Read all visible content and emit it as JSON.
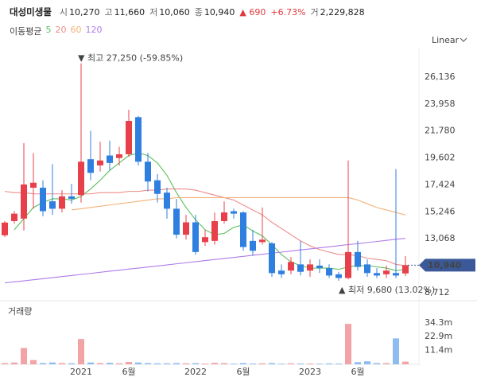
{
  "chart_data": {
    "type": "candlestick",
    "title": "대성미생물",
    "header": [
      {
        "label": "시",
        "value": "10,270"
      },
      {
        "label": "고",
        "value": "11,660"
      },
      {
        "label": "저",
        "value": "10,060"
      },
      {
        "label": "종",
        "value": "10,940"
      },
      {
        "value": "▲ 690",
        "color": "#e0393e"
      },
      {
        "value": "+6.73%",
        "color": "#e0393e"
      },
      {
        "label": "거",
        "value": "2,229,828"
      }
    ],
    "ma_label": "이동평균",
    "scale_label": "Linear",
    "up_color": "#e8404a",
    "down_color": "#2f7fe0",
    "categories": [
      null,
      null,
      null,
      null,
      null,
      null,
      null,
      null,
      "2021",
      null,
      null,
      null,
      null,
      "6월",
      null,
      null,
      null,
      null,
      null,
      null,
      "2022",
      null,
      null,
      null,
      null,
      "6월",
      null,
      null,
      null,
      null,
      null,
      null,
      "2023",
      null,
      null,
      null,
      null,
      "6월",
      null,
      null,
      null,
      null,
      null
    ],
    "open": [
      13350,
      14500,
      14700,
      17200,
      17200,
      16100,
      15500,
      16500,
      16600,
      19500,
      19000,
      19800,
      19600,
      19900,
      22900,
      19300,
      17800,
      16800,
      15500,
      13400,
      14400,
      12800,
      12900,
      14500,
      15300,
      15200,
      12900,
      12800,
      12700,
      10500,
      10500,
      11000,
      10500,
      10900,
      10700,
      10200,
      9900,
      12000,
      11000,
      10300,
      10200,
      10300,
      10270
    ],
    "high": [
      14500,
      15300,
      20800,
      20000,
      17800,
      19100,
      17000,
      17500,
      27250,
      21800,
      20900,
      21000,
      20500,
      23500,
      23000,
      20000,
      18300,
      17200,
      16300,
      15000,
      15000,
      13800,
      15200,
      16100,
      15500,
      15300,
      13800,
      15600,
      12800,
      11000,
      11600,
      12900,
      11400,
      11400,
      11000,
      10400,
      19400,
      12900,
      11400,
      10700,
      10900,
      18700,
      11660
    ],
    "low": [
      13200,
      14300,
      13740,
      15500,
      14900,
      15000,
      15200,
      15900,
      16000,
      17800,
      18500,
      18600,
      19000,
      19700,
      19000,
      16900,
      16000,
      14700,
      13100,
      13000,
      11800,
      12500,
      12600,
      14300,
      14700,
      12100,
      11700,
      12600,
      10000,
      9900,
      10200,
      10100,
      10000,
      10300,
      9900,
      9680,
      9800,
      10500,
      10000,
      9900,
      9900,
      9900,
      10060
    ],
    "close": [
      14380,
      15100,
      17460,
      17600,
      15300,
      15500,
      16500,
      16300,
      19300,
      18400,
      19400,
      19200,
      19900,
      22600,
      19300,
      17700,
      16700,
      15500,
      13400,
      14400,
      12000,
      13200,
      14500,
      15200,
      15100,
      12400,
      12100,
      13000,
      10300,
      10200,
      11200,
      10400,
      11000,
      10700,
      10100,
      9900,
      12000,
      10800,
      10300,
      10100,
      10500,
      10100,
      10940
    ],
    "ylim": [
      8300,
      28500
    ],
    "yticks": [
      {
        "value": 26136,
        "label": "26,136"
      },
      {
        "value": 23958,
        "label": "23,958"
      },
      {
        "value": 21780,
        "label": "21,780"
      },
      {
        "value": 19602,
        "label": "19,602"
      },
      {
        "value": 17424,
        "label": "17,424"
      },
      {
        "value": 15246,
        "label": "15,246"
      },
      {
        "value": 13068,
        "label": "13,068"
      },
      {
        "value": 8712,
        "label": "8,712"
      }
    ],
    "series": [
      {
        "name": "5",
        "color": "#5cbf5c",
        "values": [
          null,
          13800,
          14700,
          15600,
          16000,
          16300,
          16300,
          16200,
          16500,
          17100,
          17800,
          18600,
          19200,
          19800,
          20000,
          19800,
          19200,
          18200,
          16800,
          15600,
          14600,
          13800,
          13400,
          13500,
          14000,
          14200,
          13700,
          13300,
          12600,
          11800,
          11200,
          10900,
          10700,
          10700,
          10700,
          10600,
          10800,
          10900,
          10900,
          10800,
          10700,
          10500,
          10600
        ]
      },
      {
        "name": "20",
        "color": "#f08a8a",
        "values": [
          16900,
          16800,
          16800,
          16700,
          16700,
          16700,
          16700,
          16700,
          16700,
          16700,
          16800,
          16800,
          16800,
          16900,
          16900,
          17000,
          17000,
          17100,
          17100,
          17100,
          17000,
          16800,
          16600,
          16400,
          16200,
          15800,
          15400,
          15000,
          14400,
          13900,
          13400,
          12900,
          12500,
          12200,
          12000,
          11800,
          11800,
          11700,
          11500,
          11400,
          11300,
          11000,
          10900
        ]
      },
      {
        "name": "60",
        "color": "#f2b27a",
        "values": [
          null,
          null,
          null,
          null,
          null,
          null,
          null,
          15400,
          15500,
          15600,
          15700,
          15800,
          15900,
          16000,
          16100,
          16200,
          16300,
          16300,
          16400,
          16400,
          16400,
          16400,
          16400,
          16400,
          16400,
          16400,
          16400,
          16400,
          16400,
          16400,
          16400,
          16400,
          16400,
          16400,
          16400,
          16400,
          16400,
          16200,
          15900,
          15600,
          15400,
          15200,
          15000
        ]
      },
      {
        "name": "120",
        "color": "#b07be8",
        "values": [
          9500,
          9590,
          9670,
          9760,
          9840,
          9930,
          10020,
          10100,
          10190,
          10270,
          10360,
          10450,
          10530,
          10620,
          10700,
          10790,
          10880,
          10960,
          11050,
          11130,
          11220,
          11310,
          11390,
          11480,
          11560,
          11650,
          11740,
          11820,
          11910,
          11990,
          12080,
          12170,
          12250,
          12340,
          12420,
          12510,
          12600,
          12680,
          12770,
          12850,
          12940,
          13030,
          13100
        ]
      }
    ],
    "annotations": [
      {
        "text": "▼ 최고 27,250 (-59.85%)"
      },
      {
        "text": "▲ 최저 9,680 (13.02%)"
      }
    ],
    "volume": {
      "title": "거래량",
      "values": [
        1000000,
        1500000,
        13500000,
        3500000,
        1000000,
        1500000,
        1000000,
        800000,
        21000000,
        1500000,
        1000000,
        1200000,
        800000,
        2000000,
        1500000,
        1000000,
        800000,
        800000,
        1000000,
        800000,
        900000,
        600000,
        1200000,
        1000000,
        500000,
        1000000,
        600000,
        800000,
        1000000,
        500000,
        800000,
        600000,
        600000,
        500000,
        700000,
        600000,
        33500000,
        1800000,
        2500000,
        1000000,
        1000000,
        21500000,
        2229828
      ],
      "up_color": "#f2a3a6",
      "down_color": "#8dbcf0",
      "ylim": [
        0,
        51400000
      ],
      "yticks": [
        {
          "value": 34300000,
          "label": "34.3m"
        },
        {
          "value": 22900000,
          "label": "22.9m"
        },
        {
          "value": 11400000,
          "label": "11.4m"
        }
      ]
    }
  }
}
